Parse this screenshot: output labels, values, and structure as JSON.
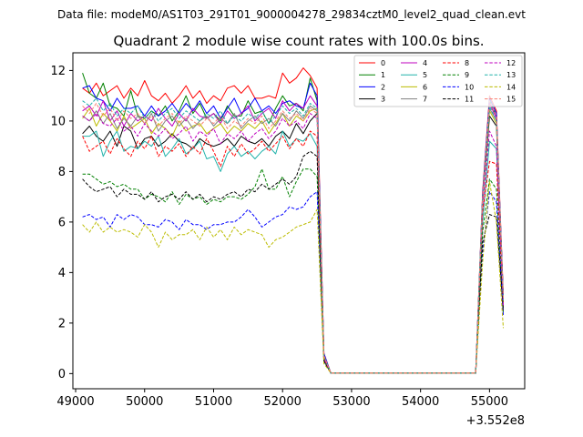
{
  "suptitle": "Data file: modeM0/AS1T03_291T01_9000004278_29834cztM0_level2_quad_clean.evt",
  "chart_data": {
    "type": "line",
    "title": "Quadrant 2 module wise count rates with 100.0s bins.",
    "xlabel": "",
    "ylabel": "",
    "x_offset_label": "+3.552e8",
    "xlim": [
      48960,
      55510
    ],
    "ylim": [
      -0.6,
      12.7
    ],
    "xticks": [
      49000,
      50000,
      51000,
      52000,
      53000,
      54000,
      55000
    ],
    "xtick_labels": [
      "49000",
      "50000",
      "51000",
      "52000",
      "53000",
      "54000",
      "55000"
    ],
    "yticks": [
      0,
      2,
      4,
      6,
      8,
      10,
      12
    ],
    "ytick_labels": [
      "0",
      "2",
      "4",
      "6",
      "8",
      "10",
      "12"
    ],
    "legend_location": "upper-right",
    "x": [
      49100,
      49200,
      49300,
      49400,
      49500,
      49600,
      49700,
      49800,
      49900,
      50000,
      50100,
      50200,
      50300,
      50400,
      50500,
      50600,
      50700,
      50800,
      50900,
      51000,
      51100,
      51200,
      51300,
      51400,
      51500,
      51600,
      51700,
      51800,
      51900,
      52000,
      52100,
      52200,
      52300,
      52400,
      52500,
      52600,
      52700,
      52800,
      52900,
      53000,
      53100,
      53200,
      53300,
      53400,
      53500,
      53600,
      53700,
      53800,
      53900,
      54000,
      54100,
      54200,
      54300,
      54400,
      54500,
      54600,
      54700,
      54800,
      54900,
      55000,
      55100,
      55200
    ],
    "series": [
      {
        "name": "0",
        "color": "#ff0000",
        "style": "solid",
        "values": [
          11.3,
          11.1,
          11.5,
          11.0,
          11.2,
          11.4,
          10.9,
          11.3,
          11.0,
          11.6,
          11.0,
          10.8,
          11.1,
          10.7,
          11.0,
          11.4,
          10.9,
          11.2,
          10.7,
          11.0,
          10.8,
          11.3,
          11.4,
          11.1,
          11.4,
          10.9,
          10.9,
          11.0,
          10.9,
          11.9,
          11.5,
          11.7,
          12.1,
          11.8,
          11.3,
          0.8,
          0.02,
          0.02,
          0.02,
          0.02,
          0.02,
          0.02,
          0.02,
          0.02,
          0.02,
          0.02,
          0.02,
          0.02,
          0.02,
          0.02,
          0.02,
          0.02,
          0.02,
          0.02,
          0.02,
          0.02,
          0.02,
          0.02,
          7.2,
          11.0,
          10.4,
          3.1
        ]
      },
      {
        "name": "1",
        "color": "#008000",
        "style": "solid",
        "values": [
          11.9,
          11.1,
          10.9,
          11.5,
          10.6,
          10.5,
          10.2,
          11.2,
          10.2,
          10.1,
          10.4,
          10.2,
          10.6,
          10.0,
          10.4,
          11.0,
          10.3,
          10.7,
          10.1,
          10.3,
          10.0,
          10.6,
          10.2,
          10.2,
          10.8,
          10.3,
          10.4,
          9.9,
          10.5,
          11.0,
          10.6,
          10.7,
          10.4,
          11.7,
          10.8,
          0.7,
          0.02,
          0.02,
          0.02,
          0.02,
          0.02,
          0.02,
          0.02,
          0.02,
          0.02,
          0.02,
          0.02,
          0.02,
          0.02,
          0.02,
          0.02,
          0.02,
          0.02,
          0.02,
          0.02,
          0.02,
          0.02,
          0.02,
          7.0,
          10.8,
          10.2,
          3.0
        ]
      },
      {
        "name": "2",
        "color": "#0000ff",
        "style": "solid",
        "values": [
          11.3,
          11.4,
          10.9,
          10.8,
          10.4,
          10.9,
          10.5,
          10.5,
          10.6,
          10.2,
          10.6,
          10.2,
          10.4,
          10.7,
          10.3,
          10.7,
          10.4,
          10.8,
          10.3,
          10.6,
          10.1,
          10.5,
          10.9,
          10.3,
          10.5,
          10.9,
          10.4,
          10.6,
          10.3,
          10.7,
          10.8,
          10.6,
          10.5,
          11.5,
          11.0,
          0.8,
          0.02,
          0.02,
          0.02,
          0.02,
          0.02,
          0.02,
          0.02,
          0.02,
          0.02,
          0.02,
          0.02,
          0.02,
          0.02,
          0.02,
          0.02,
          0.02,
          0.02,
          0.02,
          0.02,
          0.02,
          0.02,
          0.02,
          7.1,
          10.9,
          10.3,
          3.0
        ]
      },
      {
        "name": "3",
        "color": "#000000",
        "style": "solid",
        "values": [
          9.5,
          9.8,
          9.4,
          9.2,
          9.6,
          9.0,
          9.8,
          9.6,
          8.9,
          9.3,
          9.4,
          9.0,
          9.2,
          9.5,
          9.2,
          9.1,
          8.9,
          9.3,
          9.1,
          9.0,
          9.1,
          9.3,
          9.0,
          9.4,
          9.2,
          9.1,
          9.3,
          9.0,
          9.4,
          9.6,
          9.3,
          9.9,
          9.5,
          10.0,
          10.3,
          0.6,
          0.02,
          0.02,
          0.02,
          0.02,
          0.02,
          0.02,
          0.02,
          0.02,
          0.02,
          0.02,
          0.02,
          0.02,
          0.02,
          0.02,
          0.02,
          0.02,
          0.02,
          0.02,
          0.02,
          0.02,
          0.02,
          0.02,
          6.8,
          10.2,
          9.8,
          2.8
        ]
      },
      {
        "name": "4",
        "color": "#bf00bf",
        "style": "solid",
        "values": [
          10.4,
          10.6,
          10.2,
          10.8,
          10.0,
          10.4,
          9.8,
          10.3,
          10.0,
          10.2,
          10.0,
          10.5,
          10.1,
          9.8,
          10.3,
          10.0,
          10.5,
          10.2,
          10.1,
          10.3,
          9.9,
          10.4,
          10.1,
          10.3,
          10.6,
          10.0,
          10.3,
          10.5,
          10.1,
          10.8,
          10.4,
          10.7,
          10.5,
          11.0,
          10.6,
          0.7,
          0.02,
          0.02,
          0.02,
          0.02,
          0.02,
          0.02,
          0.02,
          0.02,
          0.02,
          0.02,
          0.02,
          0.02,
          0.02,
          0.02,
          0.02,
          0.02,
          0.02,
          0.02,
          0.02,
          0.02,
          0.02,
          0.02,
          7.0,
          10.7,
          10.1,
          2.9
        ]
      },
      {
        "name": "5",
        "color": "#20b2aa",
        "style": "solid",
        "values": [
          9.4,
          9.4,
          9.6,
          8.6,
          9.2,
          9.6,
          8.8,
          9.0,
          8.9,
          9.2,
          9.0,
          9.4,
          8.6,
          8.9,
          9.3,
          8.7,
          8.9,
          9.2,
          8.5,
          8.6,
          8.0,
          8.7,
          9.0,
          8.6,
          8.8,
          8.5,
          8.8,
          9.0,
          8.7,
          9.6,
          9.0,
          9.3,
          9.2,
          9.5,
          9.0,
          0.6,
          0.02,
          0.02,
          0.02,
          0.02,
          0.02,
          0.02,
          0.02,
          0.02,
          0.02,
          0.02,
          0.02,
          0.02,
          0.02,
          0.02,
          0.02,
          0.02,
          0.02,
          0.02,
          0.02,
          0.02,
          0.02,
          0.02,
          6.0,
          9.2,
          8.9,
          2.6
        ]
      },
      {
        "name": "6",
        "color": "#bcbc00",
        "style": "solid",
        "values": [
          10.1,
          10.5,
          9.8,
          10.3,
          10.0,
          9.6,
          10.2,
          9.7,
          9.9,
          10.1,
          9.5,
          9.9,
          9.7,
          9.4,
          10.0,
          9.6,
          9.8,
          9.9,
          9.5,
          9.7,
          9.9,
          9.5,
          9.8,
          9.6,
          9.9,
          9.7,
          10.0,
          9.5,
          9.9,
          10.3,
          9.8,
          10.2,
          10.0,
          10.4,
          10.5,
          0.7,
          0.02,
          0.02,
          0.02,
          0.02,
          0.02,
          0.02,
          0.02,
          0.02,
          0.02,
          0.02,
          0.02,
          0.02,
          0.02,
          0.02,
          0.02,
          0.02,
          0.02,
          0.02,
          0.02,
          0.02,
          0.02,
          0.02,
          6.9,
          10.4,
          9.9,
          2.8
        ]
      },
      {
        "name": "7",
        "color": "#808080",
        "style": "solid",
        "values": [
          10.2,
          10.0,
          10.4,
          9.9,
          10.3,
          9.7,
          10.1,
          9.8,
          10.2,
          9.9,
          10.3,
          9.6,
          10.0,
          10.2,
          9.8,
          10.1,
          9.7,
          10.0,
          10.2,
          9.8,
          10.1,
          9.9,
          10.3,
          9.7,
          10.0,
          10.2,
          9.9,
          10.1,
          9.8,
          10.3,
          10.0,
          10.4,
          10.1,
          10.6,
          10.4,
          0.7,
          0.02,
          0.02,
          0.02,
          0.02,
          0.02,
          0.02,
          0.02,
          0.02,
          0.02,
          0.02,
          0.02,
          0.02,
          0.02,
          0.02,
          0.02,
          0.02,
          0.02,
          0.02,
          0.02,
          0.02,
          0.02,
          0.02,
          6.9,
          10.5,
          10.0,
          2.9
        ]
      },
      {
        "name": "8",
        "color": "#ff0000",
        "style": "dashed",
        "values": [
          9.4,
          8.8,
          9.0,
          9.2,
          8.7,
          9.3,
          8.9,
          8.6,
          9.2,
          8.9,
          9.4,
          8.6,
          9.0,
          8.8,
          9.1,
          8.6,
          9.0,
          8.7,
          9.3,
          8.8,
          8.2,
          9.0,
          8.6,
          9.1,
          8.7,
          8.9,
          9.2,
          8.8,
          9.1,
          9.4,
          8.9,
          9.3,
          9.0,
          9.6,
          9.4,
          0.6,
          0.02,
          0.02,
          0.02,
          0.02,
          0.02,
          0.02,
          0.02,
          0.02,
          0.02,
          0.02,
          0.02,
          0.02,
          0.02,
          0.02,
          0.02,
          0.02,
          0.02,
          0.02,
          0.02,
          0.02,
          0.02,
          0.02,
          6.4,
          8.4,
          8.3,
          2.5
        ]
      },
      {
        "name": "9",
        "color": "#008000",
        "style": "dashed",
        "values": [
          7.9,
          7.9,
          7.7,
          7.5,
          7.6,
          7.4,
          7.5,
          7.3,
          7.3,
          6.9,
          7.1,
          7.0,
          6.8,
          7.2,
          6.7,
          7.1,
          6.9,
          7.0,
          6.7,
          6.9,
          6.8,
          7.0,
          7.0,
          6.9,
          7.1,
          7.4,
          8.1,
          7.3,
          7.3,
          7.8,
          7.0,
          7.6,
          8.1,
          8.1,
          7.8,
          0.5,
          0.02,
          0.02,
          0.02,
          0.02,
          0.02,
          0.02,
          0.02,
          0.02,
          0.02,
          0.02,
          0.02,
          0.02,
          0.02,
          0.02,
          0.02,
          0.02,
          0.02,
          0.02,
          0.02,
          0.02,
          0.02,
          0.02,
          5.6,
          7.7,
          7.3,
          2.4
        ]
      },
      {
        "name": "10",
        "color": "#0000ff",
        "style": "dashed",
        "values": [
          6.2,
          6.3,
          6.1,
          6.2,
          5.8,
          6.3,
          6.1,
          6.3,
          6.2,
          5.9,
          5.9,
          5.8,
          6.1,
          6.0,
          5.7,
          6.1,
          5.9,
          5.9,
          5.7,
          5.9,
          5.9,
          6.0,
          6.0,
          6.2,
          6.5,
          6.2,
          5.8,
          6.0,
          6.2,
          6.3,
          6.6,
          6.5,
          6.6,
          7.0,
          7.2,
          0.5,
          0.02,
          0.02,
          0.02,
          0.02,
          0.02,
          0.02,
          0.02,
          0.02,
          0.02,
          0.02,
          0.02,
          0.02,
          0.02,
          0.02,
          0.02,
          0.02,
          0.02,
          0.02,
          0.02,
          0.02,
          0.02,
          0.02,
          4.8,
          7.2,
          6.8,
          2.3
        ]
      },
      {
        "name": "11",
        "color": "#000000",
        "style": "dashed",
        "values": [
          7.7,
          7.4,
          7.2,
          7.3,
          7.4,
          7.0,
          7.3,
          7.1,
          7.1,
          6.9,
          7.2,
          6.8,
          7.0,
          7.1,
          6.9,
          7.2,
          6.9,
          7.1,
          6.8,
          7.0,
          6.9,
          7.1,
          7.2,
          7.0,
          7.3,
          7.2,
          7.5,
          7.3,
          7.5,
          7.7,
          7.5,
          7.8,
          8.6,
          8.8,
          8.6,
          0.5,
          0.02,
          0.02,
          0.02,
          0.02,
          0.02,
          0.02,
          0.02,
          0.02,
          0.02,
          0.02,
          0.02,
          0.02,
          0.02,
          0.02,
          0.02,
          0.02,
          0.02,
          0.02,
          0.02,
          0.02,
          0.02,
          0.02,
          5.2,
          6.3,
          6.2,
          2.5
        ]
      },
      {
        "name": "12",
        "color": "#bf00bf",
        "style": "dashed",
        "values": [
          10.2,
          10.0,
          10.3,
          9.9,
          9.8,
          10.1,
          9.6,
          9.8,
          9.4,
          9.9,
          9.6,
          9.4,
          9.7,
          9.3,
          9.5,
          9.8,
          9.2,
          9.6,
          9.4,
          9.7,
          9.1,
          9.5,
          9.3,
          9.6,
          9.2,
          9.5,
          9.7,
          9.3,
          9.6,
          10.1,
          9.8,
          10.0,
          9.7,
          10.3,
          10.1,
          0.6,
          0.02,
          0.02,
          0.02,
          0.02,
          0.02,
          0.02,
          0.02,
          0.02,
          0.02,
          0.02,
          0.02,
          0.02,
          0.02,
          0.02,
          0.02,
          0.02,
          0.02,
          0.02,
          0.02,
          0.02,
          0.02,
          0.02,
          6.6,
          9.6,
          9.0,
          2.7
        ]
      },
      {
        "name": "13",
        "color": "#20b2aa",
        "style": "dashed",
        "values": [
          10.8,
          10.6,
          10.9,
          10.4,
          10.7,
          10.2,
          10.5,
          10.3,
          10.6,
          10.1,
          10.4,
          10.0,
          10.3,
          10.5,
          10.1,
          10.4,
          10.2,
          10.0,
          10.3,
          10.1,
          10.4,
          9.9,
          10.2,
          10.0,
          10.3,
          10.1,
          10.4,
          9.9,
          10.2,
          10.6,
          10.3,
          10.5,
          10.2,
          10.7,
          10.5,
          0.7,
          0.02,
          0.02,
          0.02,
          0.02,
          0.02,
          0.02,
          0.02,
          0.02,
          0.02,
          0.02,
          0.02,
          0.02,
          0.02,
          0.02,
          0.02,
          0.02,
          0.02,
          0.02,
          0.02,
          0.02,
          0.02,
          0.02,
          7.0,
          10.6,
          10.0,
          2.9
        ]
      },
      {
        "name": "14",
        "color": "#bcbc00",
        "style": "dashed",
        "values": [
          5.9,
          5.6,
          6.0,
          5.6,
          5.8,
          5.6,
          5.7,
          5.6,
          5.4,
          5.9,
          5.6,
          5.0,
          5.6,
          5.3,
          5.5,
          5.5,
          5.7,
          5.3,
          5.8,
          5.4,
          5.7,
          5.3,
          5.8,
          5.5,
          5.7,
          5.6,
          5.5,
          5.0,
          5.3,
          5.4,
          5.6,
          5.8,
          5.9,
          6.0,
          6.5,
          0.4,
          0.02,
          0.02,
          0.02,
          0.02,
          0.02,
          0.02,
          0.02,
          0.02,
          0.02,
          0.02,
          0.02,
          0.02,
          0.02,
          0.02,
          0.02,
          0.02,
          0.02,
          0.02,
          0.02,
          0.02,
          0.02,
          0.02,
          4.4,
          7.6,
          6.0,
          1.8
        ]
      },
      {
        "name": "15",
        "color": "#fa8072",
        "style": "dashed",
        "values": [
          10.6,
          10.3,
          10.7,
          10.2,
          10.5,
          10.0,
          10.4,
          10.1,
          10.3,
          9.9,
          10.2,
          9.8,
          10.1,
          10.3,
          9.9,
          10.2,
          10.0,
          9.8,
          10.1,
          9.9,
          10.2,
          9.7,
          10.0,
          9.8,
          10.1,
          9.9,
          10.2,
          9.7,
          10.0,
          10.4,
          10.1,
          10.3,
          10.0,
          10.5,
          10.3,
          0.7,
          0.02,
          0.02,
          0.02,
          0.02,
          0.02,
          0.02,
          0.02,
          0.02,
          0.02,
          0.02,
          0.02,
          0.02,
          0.02,
          0.02,
          0.02,
          0.02,
          0.02,
          0.02,
          0.02,
          0.02,
          0.02,
          0.02,
          6.9,
          10.8,
          10.2,
          2.9
        ]
      }
    ]
  }
}
